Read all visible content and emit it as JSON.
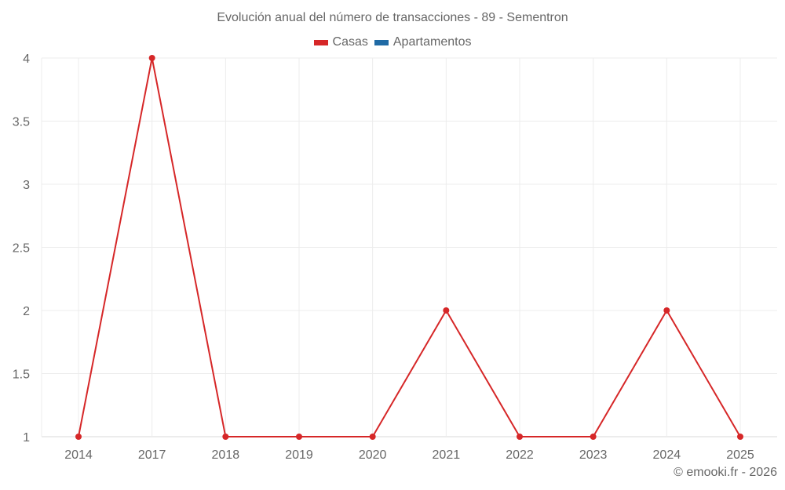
{
  "chart_data": {
    "type": "line",
    "title": "Evolución anual del número de transacciones - 89 - Sementron",
    "categories": [
      "2014",
      "2017",
      "2018",
      "2019",
      "2020",
      "2021",
      "2022",
      "2023",
      "2024",
      "2025"
    ],
    "series": [
      {
        "name": "Casas",
        "color": "#d62728",
        "values": [
          1,
          4,
          1,
          1,
          1,
          2,
          1,
          1,
          2,
          1
        ]
      },
      {
        "name": "Apartamentos",
        "color": "#1f6aa5",
        "values": []
      }
    ],
    "xlabel": "",
    "ylabel": "",
    "ylim": [
      1,
      4
    ],
    "yticks": [
      "1",
      "1.5",
      "2",
      "2.5",
      "3",
      "3.5",
      "4"
    ],
    "grid": true,
    "legend_position": "top"
  },
  "header": {
    "title": "Evolución anual del número de transacciones - 89 - Sementron"
  },
  "legend": {
    "items": [
      {
        "label": "Casas",
        "color": "#d62728"
      },
      {
        "label": "Apartamentos",
        "color": "#1f6aa5"
      }
    ]
  },
  "footer": {
    "credit": "© emooki.fr - 2026"
  }
}
